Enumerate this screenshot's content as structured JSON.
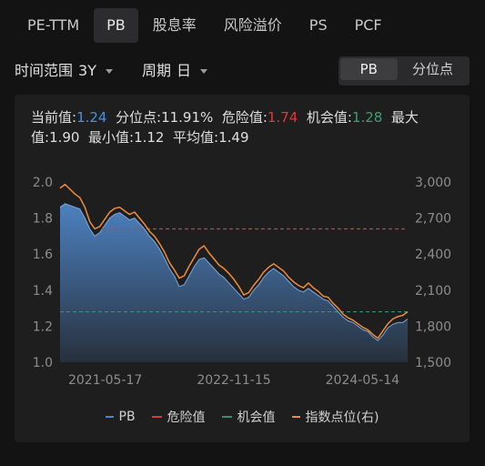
{
  "tabs": [
    "PE-TTM",
    "PB",
    "股息率",
    "风险溢价",
    "PS",
    "PCF"
  ],
  "active_tab": "PB",
  "filters": {
    "range_label": "时间范围",
    "range_value": "3Y",
    "period_label": "周期",
    "period_value": "日"
  },
  "toggle": {
    "options": [
      "PB",
      "分位点"
    ],
    "active": "PB"
  },
  "stats": {
    "current_label": "当前值:",
    "current_value": "1.24",
    "percentile_label": "分位点:",
    "percentile_value": "11.91%",
    "danger_label": "危险值:",
    "danger_value": "1.74",
    "chance_label": "机会值:",
    "chance_value": "1.28",
    "max_label": "最大值:",
    "max_value": "1.90",
    "min_label": "最小值:",
    "min_value": "1.12",
    "avg_label": "平均值:",
    "avg_value": "1.49"
  },
  "colors": {
    "pb": "#4f86c8",
    "danger": "#d8383c",
    "chance": "#3f8c70",
    "index": "#f08d3a"
  },
  "chart_data": {
    "type": "area",
    "x_labels": [
      "2021-05-17",
      "2022-11-15",
      "2024-05-14"
    ],
    "x_label_positions": [
      0.13,
      0.5,
      0.87
    ],
    "y_left": {
      "ticks": [
        "1.0",
        "1.2",
        "1.4",
        "1.6",
        "1.8",
        "2.0"
      ],
      "min": 1.0,
      "max": 2.0
    },
    "y_right": {
      "ticks": [
        "1,500",
        "1,800",
        "2,100",
        "2,400",
        "2,700",
        "3,000"
      ],
      "min": 1500,
      "max": 3000
    },
    "danger_line": 1.74,
    "chance_line": 1.28,
    "series": [
      {
        "name": "PB",
        "type": "area",
        "axis": "left",
        "values": [
          1.86,
          1.88,
          1.87,
          1.86,
          1.85,
          1.8,
          1.74,
          1.7,
          1.72,
          1.76,
          1.8,
          1.82,
          1.83,
          1.81,
          1.79,
          1.8,
          1.77,
          1.74,
          1.7,
          1.67,
          1.63,
          1.58,
          1.52,
          1.48,
          1.42,
          1.43,
          1.48,
          1.53,
          1.57,
          1.58,
          1.55,
          1.52,
          1.49,
          1.47,
          1.44,
          1.41,
          1.38,
          1.35,
          1.36,
          1.4,
          1.43,
          1.47,
          1.5,
          1.52,
          1.5,
          1.48,
          1.45,
          1.42,
          1.4,
          1.39,
          1.41,
          1.39,
          1.37,
          1.35,
          1.34,
          1.31,
          1.28,
          1.25,
          1.23,
          1.22,
          1.2,
          1.18,
          1.17,
          1.14,
          1.12,
          1.15,
          1.19,
          1.21,
          1.22,
          1.22,
          1.24
        ]
      },
      {
        "name": "危险值",
        "type": "dashed",
        "axis": "left",
        "value": 1.74
      },
      {
        "name": "机会值",
        "type": "dashed",
        "axis": "left",
        "value": 1.28
      },
      {
        "name": "指数点位(右)",
        "type": "line",
        "axis": "right",
        "values": [
          2950,
          2980,
          2940,
          2900,
          2870,
          2790,
          2670,
          2610,
          2630,
          2690,
          2750,
          2780,
          2790,
          2760,
          2730,
          2750,
          2700,
          2650,
          2590,
          2550,
          2490,
          2420,
          2330,
          2270,
          2200,
          2220,
          2300,
          2370,
          2440,
          2470,
          2410,
          2360,
          2310,
          2280,
          2240,
          2190,
          2130,
          2060,
          2080,
          2140,
          2190,
          2250,
          2290,
          2320,
          2290,
          2260,
          2210,
          2170,
          2140,
          2120,
          2160,
          2120,
          2090,
          2050,
          2040,
          1990,
          1950,
          1900,
          1870,
          1850,
          1820,
          1790,
          1770,
          1730,
          1700,
          1760,
          1820,
          1860,
          1880,
          1890,
          1920
        ]
      }
    ],
    "legend": [
      "PB",
      "危险值",
      "机会值",
      "指数点位(右)"
    ],
    "legend_position": "bottom"
  }
}
